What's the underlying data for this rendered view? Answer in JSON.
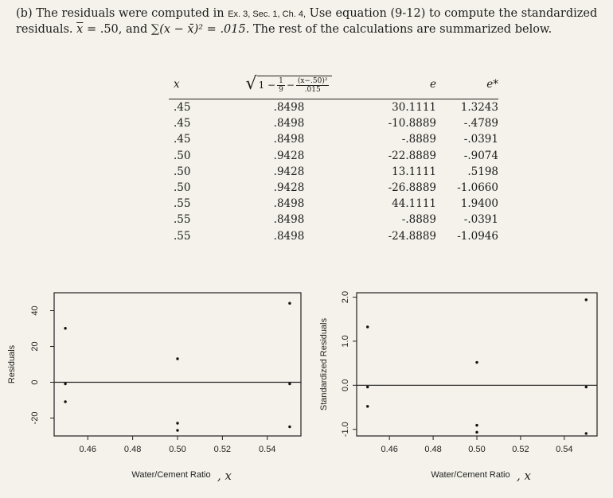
{
  "intro": {
    "label": "(b)",
    "p1": "The residuals were computed in",
    "ref": "Ex. 3, Sec. 1, Ch. 4,",
    "p2": "Use equation (9-12) to compute the standardized residuals.",
    "xbar_sym": "x",
    "xbar_val": "= .50, and",
    "sum_sym": "∑(x − x̄)² = .015.",
    "p3": "The rest of the calculations are summarized below."
  },
  "table": {
    "headers": [
      "x",
      "√(1 − 1/9 − (x−.50)²/.015)",
      "e",
      "e*"
    ],
    "rows": [
      [
        ".45",
        ".8498",
        "30.1111",
        "1.3243"
      ],
      [
        ".45",
        ".8498",
        "-10.8889",
        "-.4789"
      ],
      [
        ".45",
        ".8498",
        "-.8889",
        "-.0391"
      ],
      [
        ".50",
        ".9428",
        "-22.8889",
        "-.9074"
      ],
      [
        ".50",
        ".9428",
        "13.1111",
        ".5198"
      ],
      [
        ".50",
        ".9428",
        "-26.8889",
        "-1.0660"
      ],
      [
        ".55",
        ".8498",
        "44.1111",
        "1.9400"
      ],
      [
        ".55",
        ".8498",
        "-.8889",
        "-.0391"
      ],
      [
        ".55",
        ".8498",
        "-24.8889",
        "-1.0946"
      ]
    ]
  },
  "chart_data": [
    {
      "type": "scatter",
      "xlabel": "Water/Cement Ratio",
      "xlabel_suffix": ", x",
      "ylabel": "Residuals",
      "xlim": [
        0.445,
        0.555
      ],
      "ylim": [
        -30,
        50
      ],
      "xticks": [
        0.46,
        0.48,
        0.5,
        0.52,
        0.54
      ],
      "xtick_labels": [
        "0.46",
        "0.48",
        "0.50",
        "0.52",
        "0.54"
      ],
      "yticks": [
        -20,
        0,
        20,
        40
      ],
      "ytick_labels": [
        "-20",
        "0",
        "20",
        "40"
      ],
      "hline": 0,
      "points": [
        {
          "x": 0.45,
          "y": 30.1111
        },
        {
          "x": 0.45,
          "y": -10.8889
        },
        {
          "x": 0.45,
          "y": -0.8889
        },
        {
          "x": 0.5,
          "y": -22.8889
        },
        {
          "x": 0.5,
          "y": 13.1111
        },
        {
          "x": 0.5,
          "y": -26.8889
        },
        {
          "x": 0.55,
          "y": 44.1111
        },
        {
          "x": 0.55,
          "y": -0.8889
        },
        {
          "x": 0.55,
          "y": -24.8889
        }
      ]
    },
    {
      "type": "scatter",
      "xlabel": "Water/Cement Ratio",
      "xlabel_suffix": ", x",
      "ylabel": "Standardized Residuals",
      "xlim": [
        0.445,
        0.555
      ],
      "ylim": [
        -1.15,
        2.1
      ],
      "xticks": [
        0.46,
        0.48,
        0.5,
        0.52,
        0.54
      ],
      "xtick_labels": [
        "0.46",
        "0.48",
        "0.50",
        "0.52",
        "0.54"
      ],
      "yticks": [
        -1.0,
        0.0,
        1.0,
        2.0
      ],
      "ytick_labels": [
        "-1.0",
        "0.0",
        "1.0",
        "2.0"
      ],
      "hline": 0,
      "points": [
        {
          "x": 0.45,
          "y": 1.3243
        },
        {
          "x": 0.45,
          "y": -0.4789
        },
        {
          "x": 0.45,
          "y": -0.0391
        },
        {
          "x": 0.5,
          "y": -0.9074
        },
        {
          "x": 0.5,
          "y": 0.5198
        },
        {
          "x": 0.5,
          "y": -1.066
        },
        {
          "x": 0.55,
          "y": 1.94
        },
        {
          "x": 0.55,
          "y": -0.0391
        },
        {
          "x": 0.55,
          "y": -1.0946
        }
      ]
    }
  ]
}
